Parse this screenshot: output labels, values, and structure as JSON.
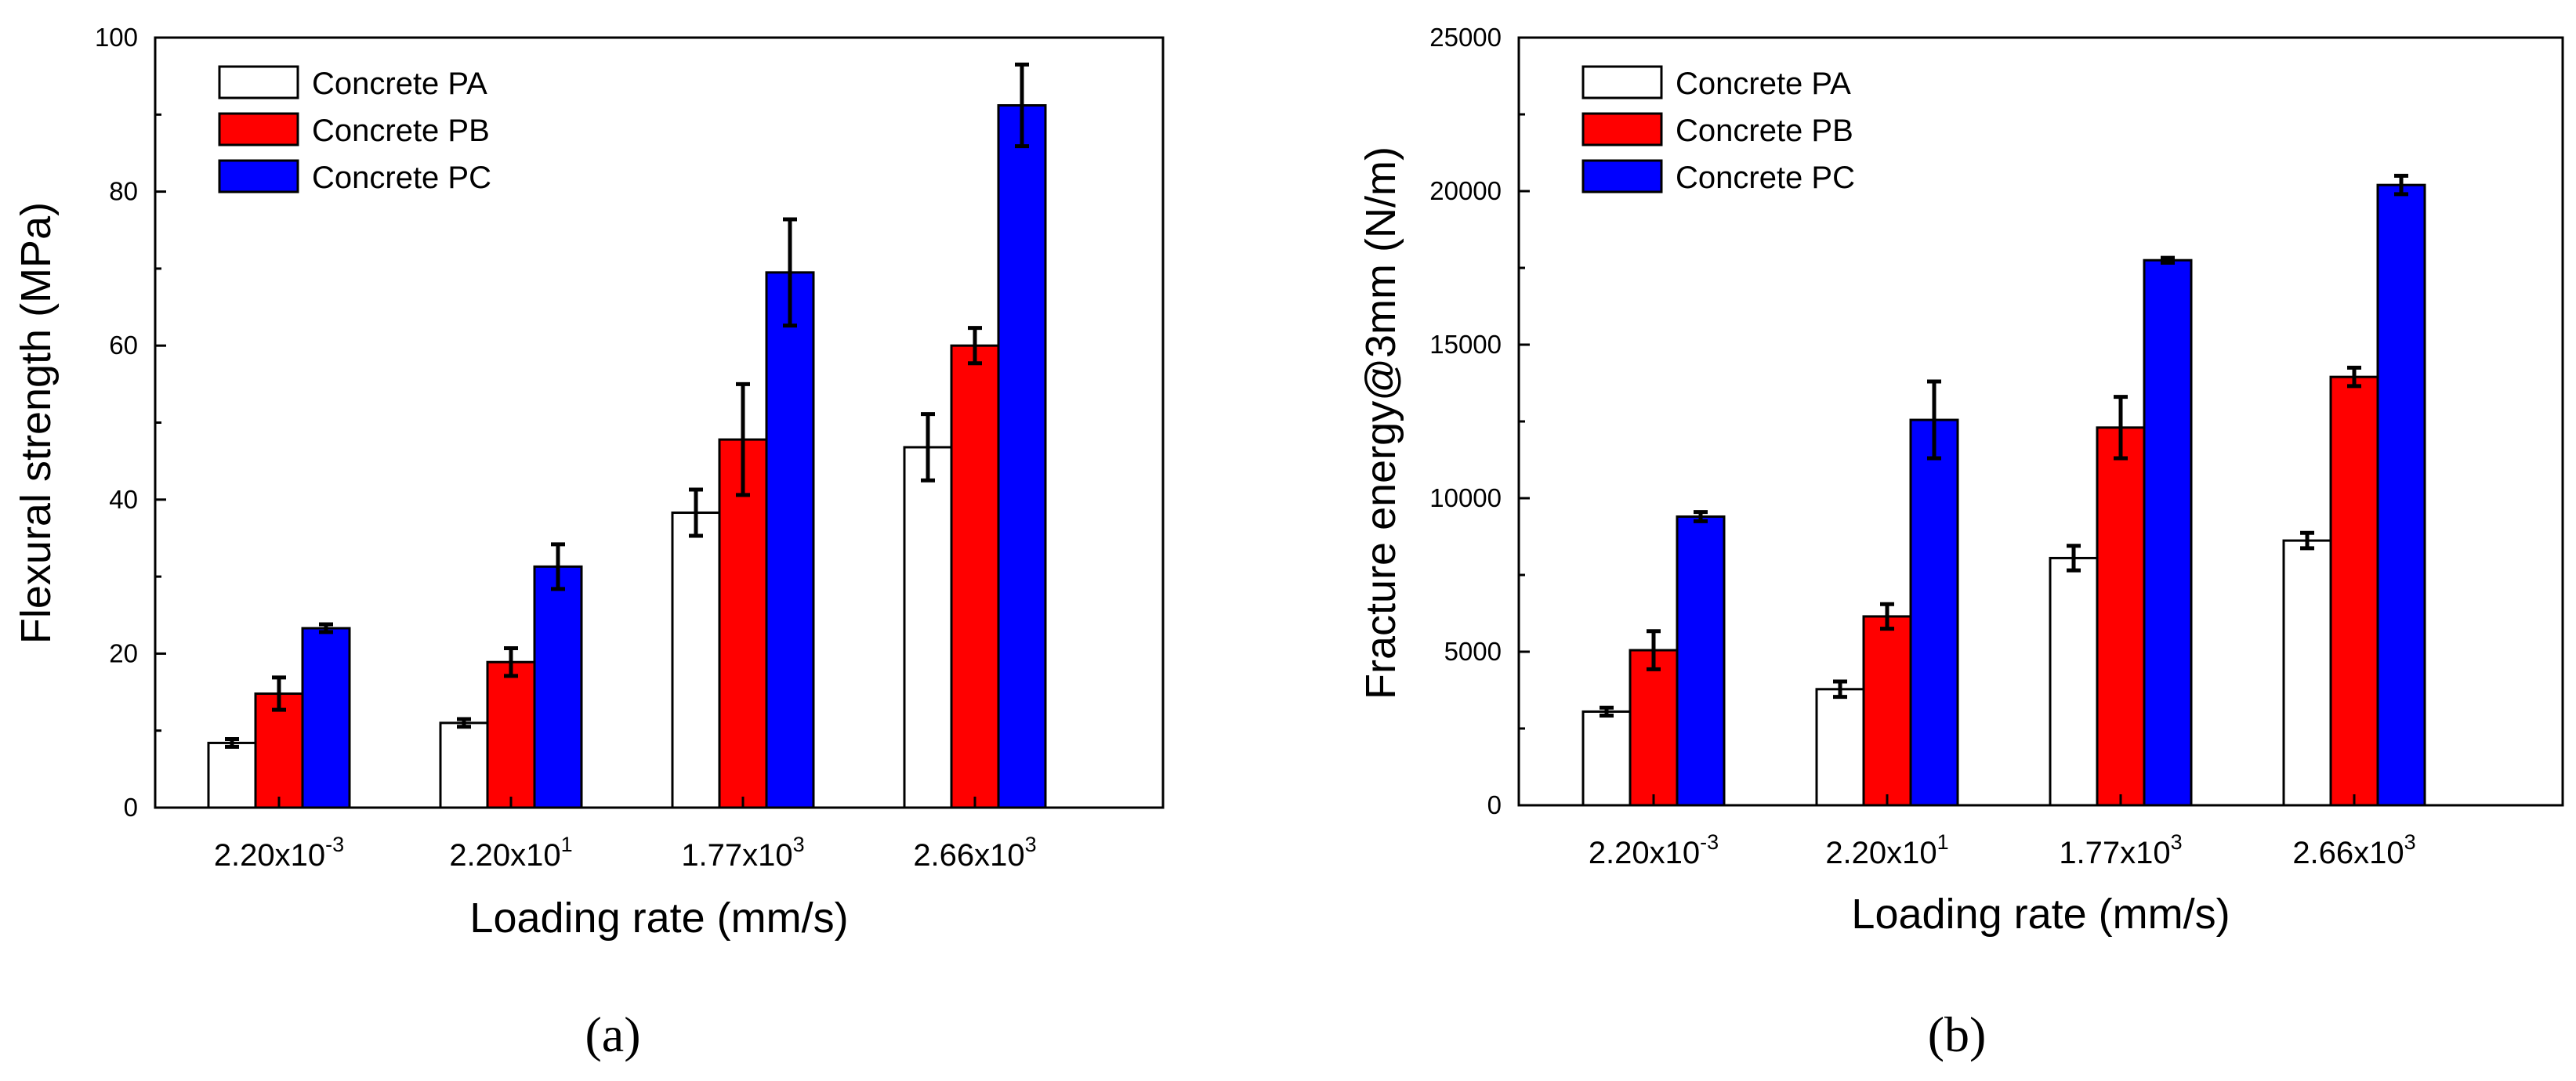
{
  "figure": {
    "panel_a_label": "(a)",
    "panel_b_label": "(b)"
  },
  "colors": {
    "series_pa": "#ffffff",
    "series_pb": "#ff0000",
    "series_pc": "#0000ff",
    "axis": "#000000"
  },
  "chart_data": [
    {
      "type": "bar",
      "panel": "a",
      "title": "",
      "xlabel": "Loading rate (mm/s)",
      "ylabel": "Flexural strength (MPa)",
      "ylim": [
        0,
        100
      ],
      "yticks": [
        "0",
        "20",
        "40",
        "60",
        "80",
        "100"
      ],
      "ytick_values": [
        0,
        20,
        40,
        60,
        80,
        100
      ],
      "categories": [
        {
          "base": "2.20x10",
          "exp": "-3"
        },
        {
          "base": "2.20x10",
          "exp": "1"
        },
        {
          "base": "1.77x10",
          "exp": "3"
        },
        {
          "base": "2.66x10",
          "exp": "3"
        }
      ],
      "legend_position": "top-left",
      "series": [
        {
          "name": "Concrete PA",
          "values": [
            8.4,
            11.0,
            38.3,
            46.8
          ],
          "errors": [
            0.5,
            0.5,
            3.0,
            4.3
          ]
        },
        {
          "name": "Concrete PB",
          "values": [
            14.8,
            18.9,
            47.8,
            60.0
          ],
          "errors": [
            2.1,
            1.8,
            7.2,
            2.3
          ]
        },
        {
          "name": "Concrete PC",
          "values": [
            23.3,
            31.3,
            69.5,
            91.2
          ],
          "errors": [
            0.5,
            2.9,
            6.9,
            5.3
          ]
        }
      ]
    },
    {
      "type": "bar",
      "panel": "b",
      "title": "",
      "xlabel": "Loading rate (mm/s)",
      "ylabel": "Fracture energy@3mm (N/m)",
      "ylim": [
        0,
        25000
      ],
      "yticks": [
        "0",
        "5000",
        "10000",
        "15000",
        "20000",
        "25000"
      ],
      "ytick_values": [
        0,
        5000,
        10000,
        15000,
        20000,
        25000
      ],
      "categories": [
        {
          "base": "2.20x10",
          "exp": "-3"
        },
        {
          "base": "2.20x10",
          "exp": "1"
        },
        {
          "base": "1.77x10",
          "exp": "3"
        },
        {
          "base": "2.66x10",
          "exp": "3"
        }
      ],
      "legend_position": "top-left",
      "series": [
        {
          "name": "Concrete PA",
          "values": [
            3050,
            3780,
            8050,
            8620
          ],
          "errors": [
            130,
            250,
            400,
            250
          ]
        },
        {
          "name": "Concrete PB",
          "values": [
            5050,
            6150,
            12300,
            13950
          ],
          "errors": [
            620,
            400,
            1000,
            300
          ]
        },
        {
          "name": "Concrete PC",
          "values": [
            9400,
            12550,
            17750,
            20200
          ],
          "errors": [
            150,
            1250,
            80,
            300
          ]
        }
      ]
    }
  ]
}
